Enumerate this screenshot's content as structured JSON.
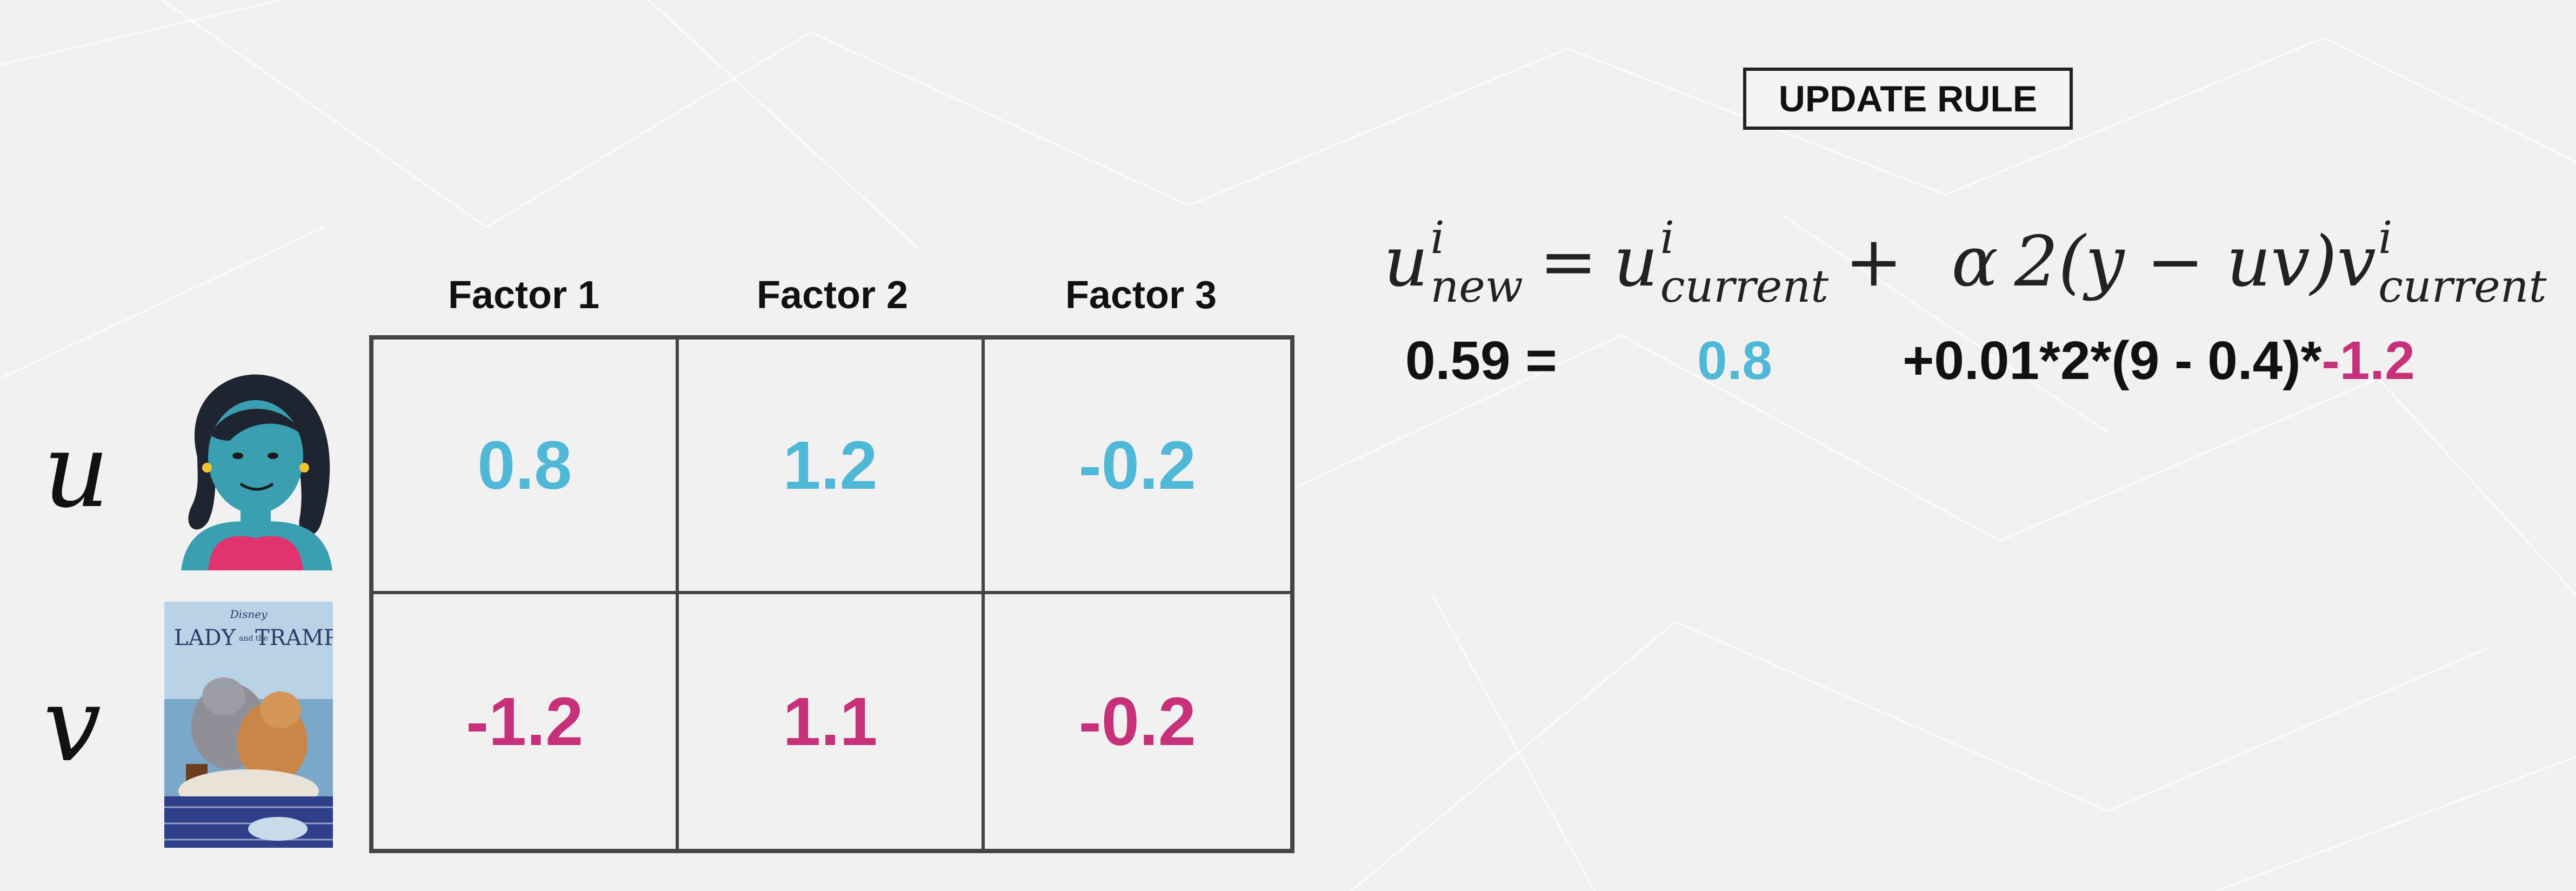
{
  "rule_label": "UPDATE RULE",
  "formula": {
    "lhs_base": "u",
    "lhs_sup": "i",
    "lhs_sub": "new",
    "eq": "=",
    "term1_base": "u",
    "term1_sup": "i",
    "term1_sub": "current",
    "plus": "+",
    "alpha": "α",
    "middle": "2(y − uv)",
    "term2_base": "v",
    "term2_sup": "i",
    "term2_sub": "current"
  },
  "calculation": {
    "result": "0.59 =",
    "current": "0.8",
    "increment": "+0.01*2*(9 - 0.4)*",
    "v_value": "-1.2"
  },
  "factors": [
    "Factor 1",
    "Factor 2",
    "Factor 3"
  ],
  "rows": [
    {
      "symbol": "u",
      "values": [
        "0.8",
        "1.2",
        "-0.2"
      ],
      "color": "#4fb8d6"
    },
    {
      "symbol": "v",
      "values": [
        "-1.2",
        "1.1",
        "-0.2"
      ],
      "color": "#c7317a"
    }
  ],
  "poster": {
    "brand": "Disney",
    "title_left": "LADY",
    "title_and": "and the",
    "title_right": "TRAMP"
  }
}
